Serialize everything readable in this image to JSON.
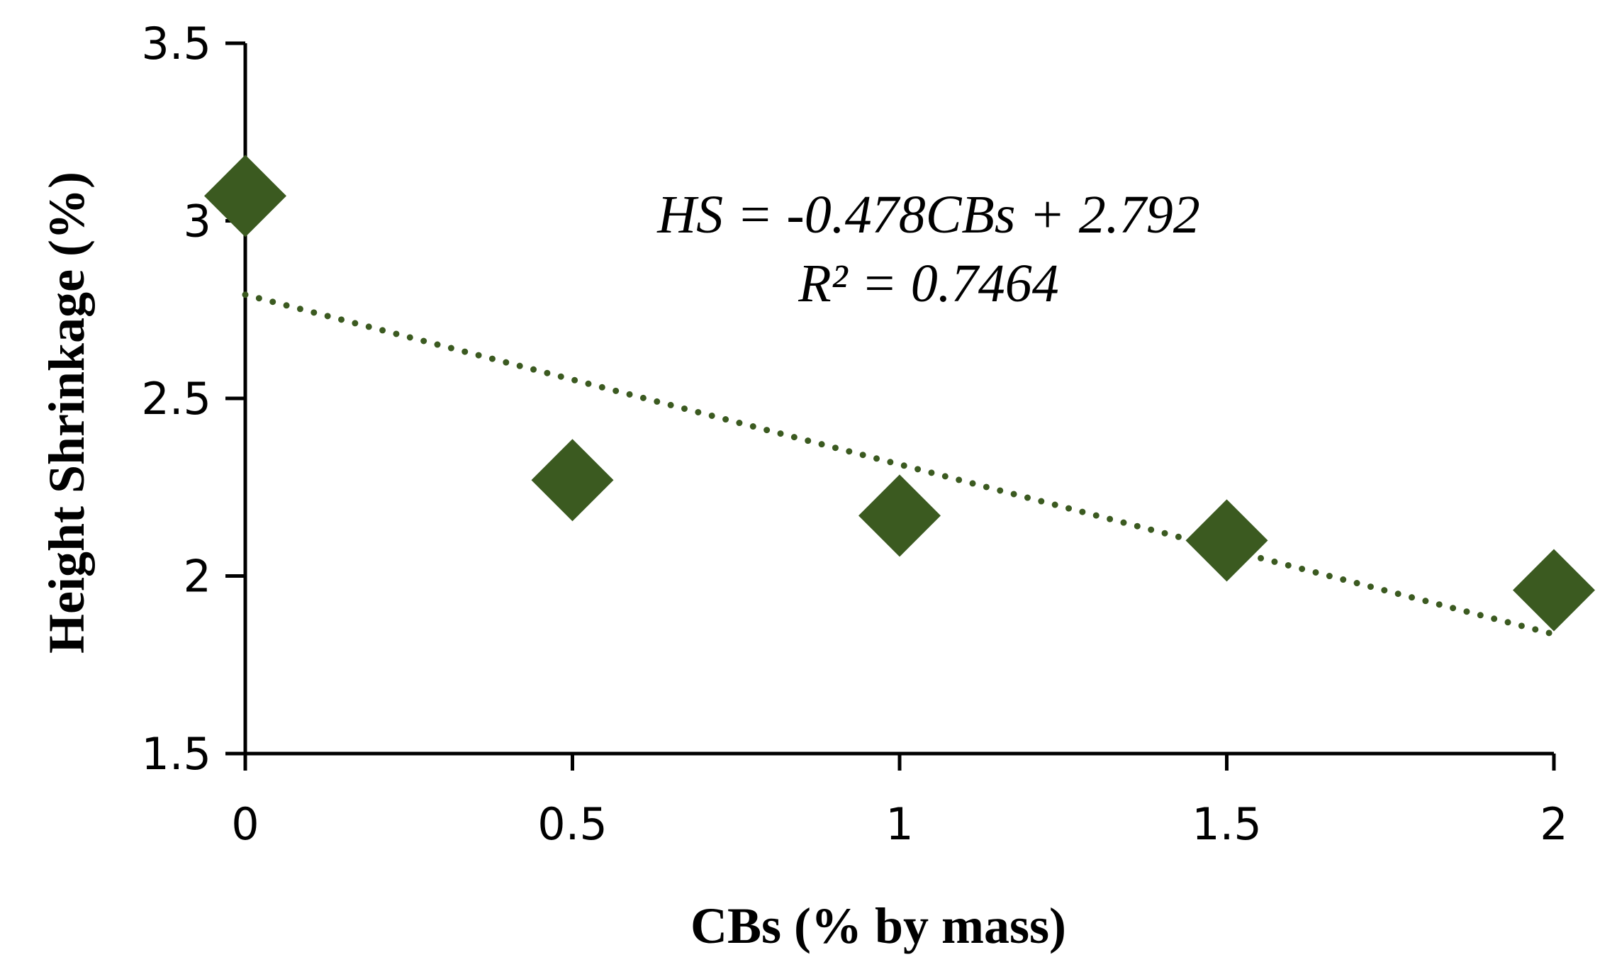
{
  "chart_data": {
    "type": "scatter",
    "title": "",
    "xlabel": "CBs (% by mass)",
    "ylabel": "Height Shrinkage (%)",
    "xlim": [
      0,
      2
    ],
    "ylim": [
      1.5,
      3.5
    ],
    "x_ticks": [
      0,
      0.5,
      1,
      1.5,
      2
    ],
    "y_ticks": [
      1.5,
      2,
      2.5,
      3,
      3.5
    ],
    "x_tick_labels": [
      "0",
      "0.5",
      "1",
      "1.5",
      "2"
    ],
    "y_tick_labels": [
      "1.5",
      "2",
      "2.5",
      "3",
      "3.5"
    ],
    "grid": false,
    "legend": "none",
    "series": [
      {
        "x": [
          0,
          0.5,
          1,
          1.5,
          2
        ],
        "y": [
          3.07,
          2.27,
          2.17,
          2.1,
          1.96
        ],
        "marker": "diamond",
        "color": "#3b5a20"
      }
    ],
    "trendline": {
      "type": "linear",
      "slope": -0.478,
      "intercept": 2.792,
      "style": "dotted",
      "color": "#3b5a20",
      "x_range": [
        0,
        2
      ]
    },
    "annotations": {
      "equation": "HS = -0.478CBs + 2.792",
      "r_squared": "R² = 0.7464"
    }
  }
}
